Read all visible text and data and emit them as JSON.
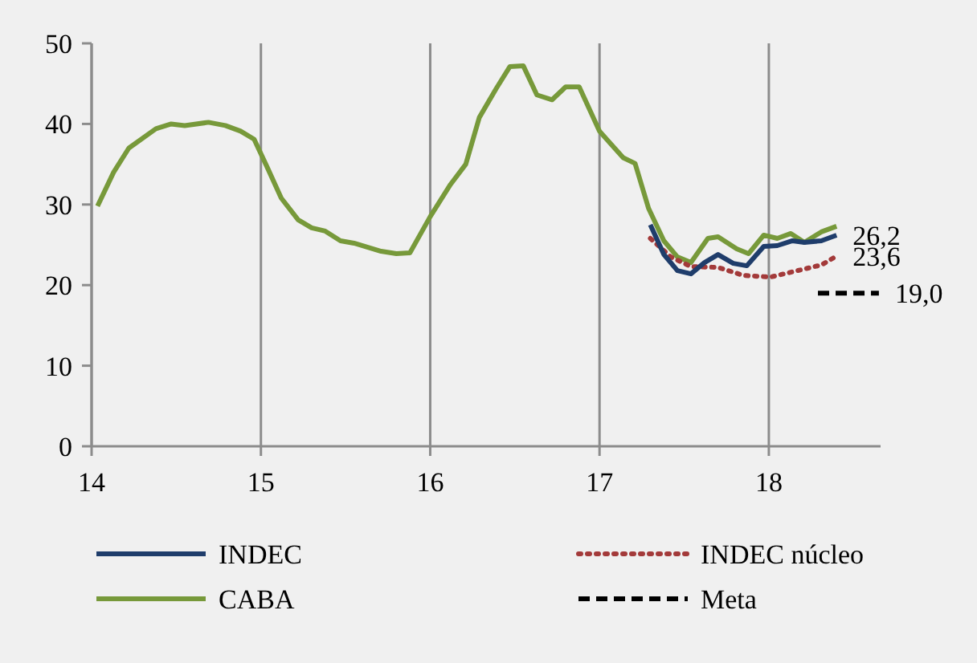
{
  "chart_data": {
    "type": "line",
    "xlim": [
      14,
      18.66
    ],
    "xticks": [
      14,
      15,
      16,
      17,
      18
    ],
    "ylim": [
      0,
      50
    ],
    "yticks": [
      0,
      10,
      20,
      30,
      40,
      50
    ],
    "grid": "x",
    "legend": "bottom",
    "series": [
      {
        "name": "INDEC",
        "color": "#1f3d6b",
        "line_style": "solid",
        "x": [
          17.3,
          17.38,
          17.46,
          17.54,
          17.62,
          17.7,
          17.79,
          17.87,
          17.97,
          18.05,
          18.14,
          18.21,
          18.31,
          18.4
        ],
        "values": [
          27.5,
          23.8,
          21.8,
          21.4,
          22.8,
          23.8,
          22.7,
          22.4,
          24.8,
          24.9,
          25.5,
          25.3,
          25.5,
          26.2
        ],
        "value_labels": [
          null,
          null,
          null,
          null,
          null,
          null,
          null,
          null,
          null,
          null,
          null,
          null,
          null,
          "26,2"
        ]
      },
      {
        "name": "INDEC núcleo",
        "color": "#a33a3a",
        "line_style": "dotted",
        "x": [
          17.3,
          17.42,
          17.54,
          17.7,
          17.85,
          18.01,
          18.17,
          18.31,
          18.4
        ],
        "values": [
          25.8,
          23.5,
          22.3,
          22.2,
          21.2,
          21.0,
          21.8,
          22.5,
          23.6
        ],
        "value_labels": [
          null,
          null,
          null,
          null,
          null,
          null,
          null,
          null,
          "23,6"
        ]
      },
      {
        "name": "CABA",
        "color": "#77993a",
        "line_style": "solid",
        "x": [
          14.035,
          14.13,
          14.22,
          14.38,
          14.47,
          14.55,
          14.69,
          14.79,
          14.88,
          14.96,
          15.04,
          15.12,
          15.22,
          15.3,
          15.38,
          15.47,
          15.55,
          15.71,
          15.8,
          15.88,
          16.0,
          16.12,
          16.21,
          16.29,
          16.39,
          16.47,
          16.55,
          16.63,
          16.72,
          16.8,
          16.88,
          17.0,
          17.14,
          17.21,
          17.29,
          17.38,
          17.46,
          17.54,
          17.64,
          17.7,
          17.81,
          17.88,
          17.97,
          18.05,
          18.13,
          18.21,
          18.31,
          18.4
        ],
        "values": [
          29.8,
          34.0,
          37.0,
          39.4,
          40.0,
          39.8,
          40.2,
          39.8,
          39.1,
          38.1,
          34.5,
          30.8,
          28.1,
          27.1,
          26.7,
          25.5,
          25.2,
          24.2,
          23.9,
          24.0,
          28.5,
          32.5,
          35.0,
          40.8,
          44.4,
          47.1,
          47.2,
          43.6,
          43.0,
          44.6,
          44.6,
          39.1,
          35.8,
          35.1,
          29.5,
          25.5,
          23.5,
          22.8,
          25.8,
          26.0,
          24.5,
          23.9,
          26.2,
          25.8,
          26.4,
          25.3,
          26.6,
          27.3
        ]
      },
      {
        "name": "Meta",
        "color": "#000000",
        "line_style": "dashed",
        "x": [
          18.29,
          18.65
        ],
        "values": [
          19.0,
          19.0
        ],
        "value_labels": [
          null,
          "19,0"
        ]
      }
    ]
  }
}
